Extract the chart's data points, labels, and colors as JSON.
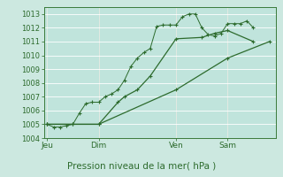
{
  "xlabel": "Pression niveau de la mer( hPa )",
  "bg_color": "#cce8e0",
  "plot_bg_color": "#c0e4dc",
  "grid_color_major": "#aad4cc",
  "grid_color_white": "#ffffff",
  "line_color": "#2d6b2d",
  "ylim": [
    1004,
    1013.5
  ],
  "yticks": [
    1004,
    1005,
    1006,
    1007,
    1008,
    1009,
    1010,
    1011,
    1012,
    1013
  ],
  "day_labels": [
    "Jeu",
    "Dim",
    "Ven",
    "Sam"
  ],
  "day_positions": [
    0.5,
    8.5,
    20.5,
    28.5
  ],
  "vline_positions": [
    0.5,
    8.5,
    20.5,
    28.5
  ],
  "xlim": [
    0,
    36
  ],
  "series1_x": [
    0.5,
    1.5,
    2.5,
    3.5,
    4.5,
    5.5,
    6.5,
    7.5,
    8.5,
    9.5,
    10.5,
    11.5,
    12.5,
    13.5,
    14.5,
    15.5,
    16.5,
    17.5,
    18.5,
    19.5,
    20.5,
    21.5,
    22.5,
    23.5,
    24.5,
    25.5,
    26.5,
    27.5,
    28.5,
    29.5,
    30.5,
    31.5,
    32.5
  ],
  "series1_y": [
    1005.0,
    1004.8,
    1004.8,
    1004.9,
    1005.0,
    1005.8,
    1006.5,
    1006.6,
    1006.6,
    1007.0,
    1007.2,
    1007.5,
    1008.2,
    1009.2,
    1009.8,
    1010.2,
    1010.5,
    1012.1,
    1012.2,
    1012.2,
    1012.2,
    1012.8,
    1013.0,
    1013.0,
    1012.0,
    1011.5,
    1011.4,
    1011.6,
    1012.3,
    1012.3,
    1012.3,
    1012.5,
    1012.0
  ],
  "series2_x": [
    0.5,
    8.5,
    20.5,
    28.5,
    35.0
  ],
  "series2_y": [
    1005.0,
    1005.0,
    1007.5,
    1009.8,
    1011.0
  ],
  "series3_x": [
    0.5,
    4.5,
    8.5,
    11.5,
    12.5,
    14.5,
    16.5,
    20.5,
    24.5,
    26.5,
    28.5,
    32.5
  ],
  "series3_y": [
    1005.0,
    1005.0,
    1005.0,
    1006.6,
    1007.0,
    1007.5,
    1008.5,
    1011.2,
    1011.3,
    1011.6,
    1011.8,
    1011.0
  ]
}
